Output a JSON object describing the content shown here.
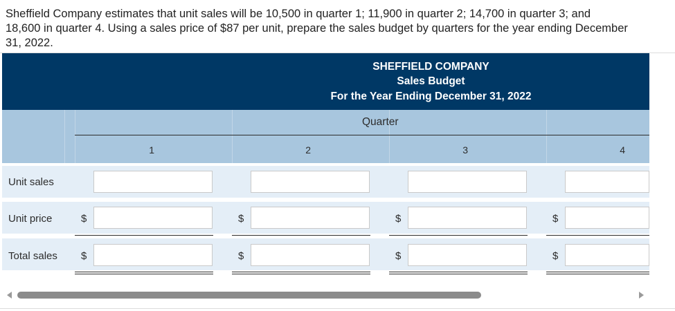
{
  "question": "Sheffield Company estimates that unit sales will be 10,500 in quarter 1; 11,900 in quarter 2; 14,700 in quarter 3; and 18,600 in quarter 4. Using a sales price of $87 per unit, prepare the sales budget by quarters for the year ending December 31, 2022.",
  "table": {
    "company": "SHEFFIELD COMPANY",
    "subtitle": "Sales Budget",
    "period": "For the Year Ending December 31, 2022",
    "quarter_header": "Quarter",
    "quarters": [
      "1",
      "2",
      "3",
      "4"
    ],
    "rows": [
      {
        "label": "Unit sales",
        "currency": ""
      },
      {
        "label": "Unit price",
        "currency": "$"
      },
      {
        "label": "Total sales",
        "currency": "$"
      }
    ],
    "inputs": {
      "unit_sales": [
        "",
        "",
        "",
        ""
      ],
      "unit_price": [
        "",
        "",
        "",
        ""
      ],
      "total_sales": [
        "",
        "",
        "",
        ""
      ]
    }
  },
  "colors": {
    "header_bg": "#003865",
    "quarter_band": "#a8c6de",
    "row_bg": "#e4eef7"
  }
}
